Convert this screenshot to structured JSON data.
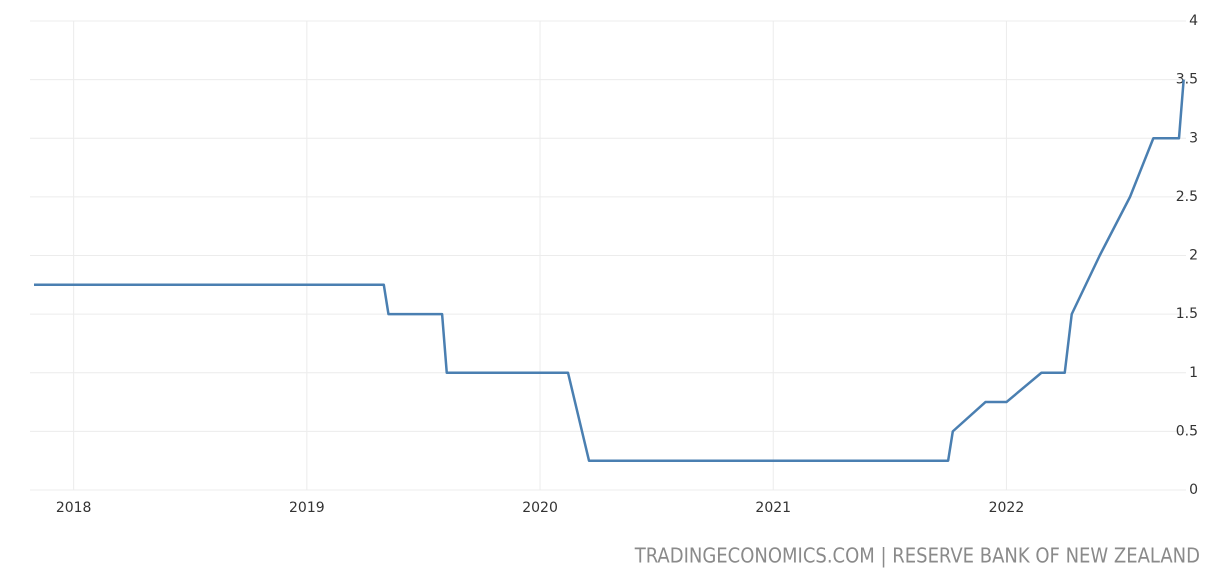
{
  "chart_data": {
    "type": "line",
    "source": "TRADINGECONOMICS.COM | RESERVE BANK OF NEW ZEALAND",
    "x": [
      2017.83,
      2019.33,
      2019.35,
      2019.58,
      2019.6,
      2020.12,
      2020.21,
      2021.75,
      2021.77,
      2021.91,
      2022.0,
      2022.15,
      2022.25,
      2022.28,
      2022.4,
      2022.53,
      2022.63,
      2022.74,
      2022.76
    ],
    "values": [
      1.75,
      1.75,
      1.5,
      1.5,
      1.0,
      1.0,
      0.25,
      0.25,
      0.5,
      0.75,
      0.75,
      1.0,
      1.0,
      1.5,
      2.0,
      2.5,
      3.0,
      3.0,
      3.5
    ],
    "color": "#4a7fb1",
    "xlim": [
      2017.83,
      2022.77
    ],
    "xticks": [
      2018,
      2019,
      2020,
      2021,
      2022
    ],
    "ylim": [
      0,
      4
    ],
    "yticks": [
      0,
      0.5,
      1,
      1.5,
      2,
      2.5,
      3,
      3.5,
      4
    ],
    "grid": true
  }
}
